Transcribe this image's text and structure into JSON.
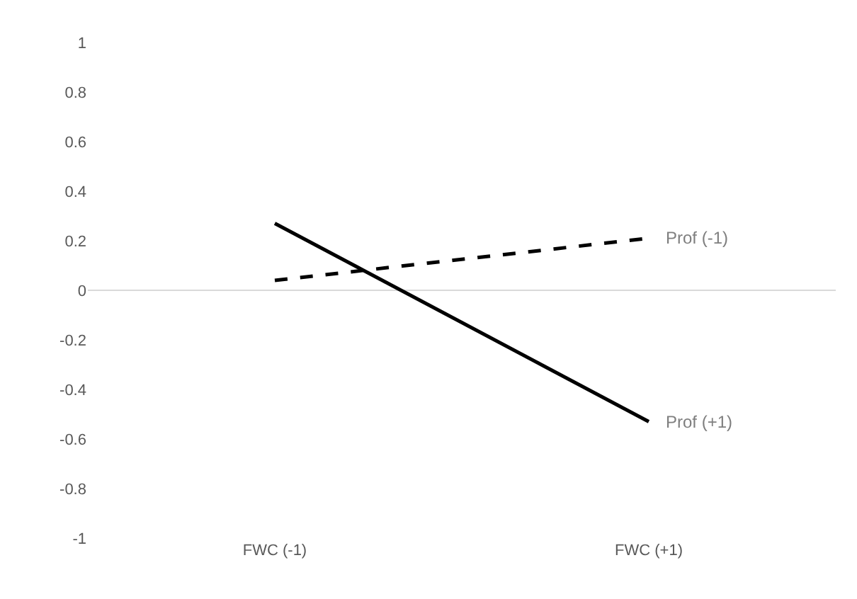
{
  "chart_data": {
    "type": "line",
    "categories": [
      "FWC (-1)",
      "FWC (+1)"
    ],
    "series": [
      {
        "name": "Prof (-1)",
        "color": "#000000",
        "values": [
          0.04,
          0.21
        ],
        "line_style": "dashed"
      },
      {
        "name": "Prof (+1)",
        "color": "#000000",
        "values": [
          0.27,
          -0.53
        ],
        "line_style": "solid"
      }
    ],
    "ylim": [
      -1,
      1
    ],
    "yticks": [
      1,
      0.8,
      0.6,
      0.4,
      0.2,
      0,
      -0.2,
      -0.4,
      -0.6,
      -0.8,
      -1
    ],
    "grid": false,
    "ref_lines": [
      {
        "axis": "y",
        "value": 0,
        "color": "#d9d9d9"
      }
    ],
    "legend": false,
    "marker": "none"
  }
}
